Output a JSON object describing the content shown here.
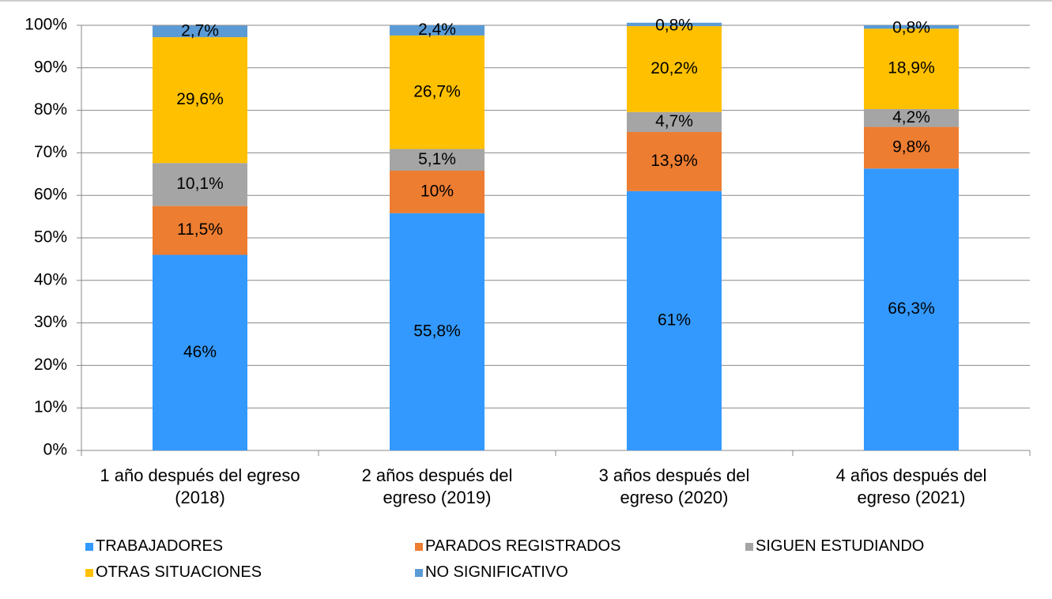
{
  "chart_data": {
    "type": "stacked_bar",
    "categories": [
      "1 año después del egreso (2018)",
      "2 años después del egreso (2019)",
      "3 años después del egreso (2020)",
      "4 años después del egreso (2021)"
    ],
    "series": [
      {
        "name": "TRABAJADORES",
        "color": "#3399ff",
        "values": [
          46,
          55.8,
          61,
          66.3
        ],
        "value_labels": [
          "46%",
          "55,8%",
          "61%",
          "66,3%"
        ]
      },
      {
        "name": "PARADOS REGISTRADOS",
        "color": "#ed7d31",
        "values": [
          11.5,
          10,
          13.9,
          9.8
        ],
        "value_labels": [
          "11,5%",
          "10%",
          "13,9%",
          "9,8%"
        ]
      },
      {
        "name": "SIGUEN ESTUDIANDO",
        "color": "#a5a5a5",
        "values": [
          10.1,
          5.1,
          4.7,
          4.2
        ],
        "value_labels": [
          "10,1%",
          "5,1%",
          "4,7%",
          "4,2%"
        ]
      },
      {
        "name": "OTRAS SITUACIONES",
        "color": "#ffc000",
        "values": [
          29.6,
          26.7,
          20.2,
          18.9
        ],
        "value_labels": [
          "29,6%",
          "26,7%",
          "20,2%",
          "18,9%"
        ]
      },
      {
        "name": "NO SIGNIFICATIVO",
        "color": "#5b9bd5",
        "values": [
          2.7,
          2.4,
          0.8,
          0.8
        ],
        "value_labels": [
          "2,7%",
          "2,4%",
          "0,8%",
          "0,8%"
        ]
      }
    ],
    "ylim": [
      0,
      100
    ],
    "yticks": [
      {
        "value": 0,
        "label": "0%"
      },
      {
        "value": 10,
        "label": "10%"
      },
      {
        "value": 20,
        "label": "20%"
      },
      {
        "value": 30,
        "label": "30%"
      },
      {
        "value": 40,
        "label": "40%"
      },
      {
        "value": 50,
        "label": "50%"
      },
      {
        "value": 60,
        "label": "60%"
      },
      {
        "value": 70,
        "label": "70%"
      },
      {
        "value": 80,
        "label": "80%"
      },
      {
        "value": 90,
        "label": "90%"
      },
      {
        "value": 100,
        "label": "100%"
      }
    ],
    "grid": true,
    "legend": "bottom"
  }
}
